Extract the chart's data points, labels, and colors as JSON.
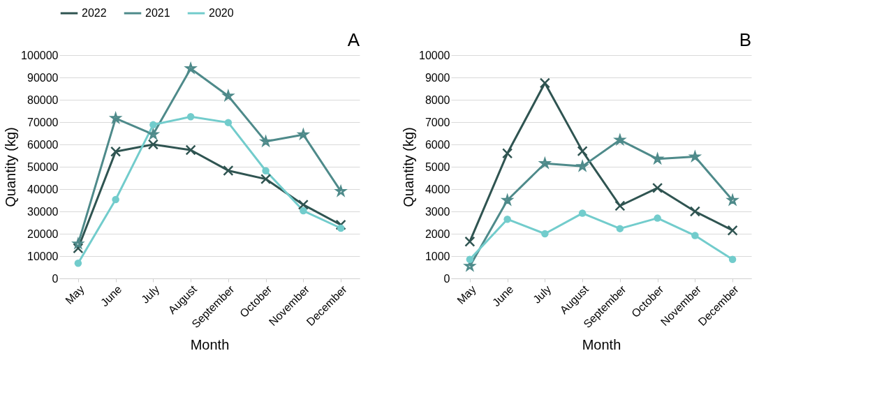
{
  "chart_data": [
    {
      "type": "line",
      "title": "A",
      "xlabel": "Month",
      "ylabel": "Quantity (kg)",
      "categories": [
        "May",
        "June",
        "July",
        "August",
        "September",
        "October",
        "November",
        "December"
      ],
      "ylim": [
        0,
        100000
      ],
      "yticks": [
        0,
        10000,
        20000,
        30000,
        40000,
        50000,
        60000,
        70000,
        80000,
        90000,
        100000
      ],
      "grid": "y",
      "legend": "top",
      "series": [
        {
          "name": "2022",
          "color": "#2f5451",
          "marker": "cross",
          "values": [
            13500,
            56800,
            60000,
            57500,
            48300,
            44500,
            33000,
            24000
          ]
        },
        {
          "name": "2021",
          "color": "#4e8a8a",
          "marker": "star",
          "values": [
            15500,
            71700,
            64500,
            94000,
            81700,
            61300,
            64400,
            39000
          ]
        },
        {
          "name": "2020",
          "color": "#72cccc",
          "marker": "circle",
          "values": [
            6800,
            35300,
            68800,
            72400,
            69800,
            48200,
            30300,
            22500
          ]
        }
      ]
    },
    {
      "type": "line",
      "title": "B",
      "xlabel": "Month",
      "ylabel": "Quantity (kg)",
      "categories": [
        "May",
        "June",
        "July",
        "August",
        "September",
        "October",
        "November",
        "December"
      ],
      "ylim": [
        0,
        10000
      ],
      "yticks": [
        0,
        1000,
        2000,
        3000,
        4000,
        5000,
        6000,
        7000,
        8000,
        9000,
        10000
      ],
      "grid": "y",
      "legend": "top",
      "series": [
        {
          "name": "2022",
          "color": "#2f5451",
          "marker": "cross",
          "values": [
            1650,
            5600,
            8750,
            5700,
            3250,
            4050,
            3000,
            2150
          ]
        },
        {
          "name": "2021",
          "color": "#4e8a8a",
          "marker": "star",
          "values": [
            550,
            3500,
            5150,
            5020,
            6200,
            5350,
            5450,
            3500
          ]
        },
        {
          "name": "2020",
          "color": "#72cccc",
          "marker": "circle",
          "values": [
            850,
            2650,
            2000,
            2920,
            2230,
            2700,
            1920,
            850
          ]
        }
      ]
    }
  ]
}
